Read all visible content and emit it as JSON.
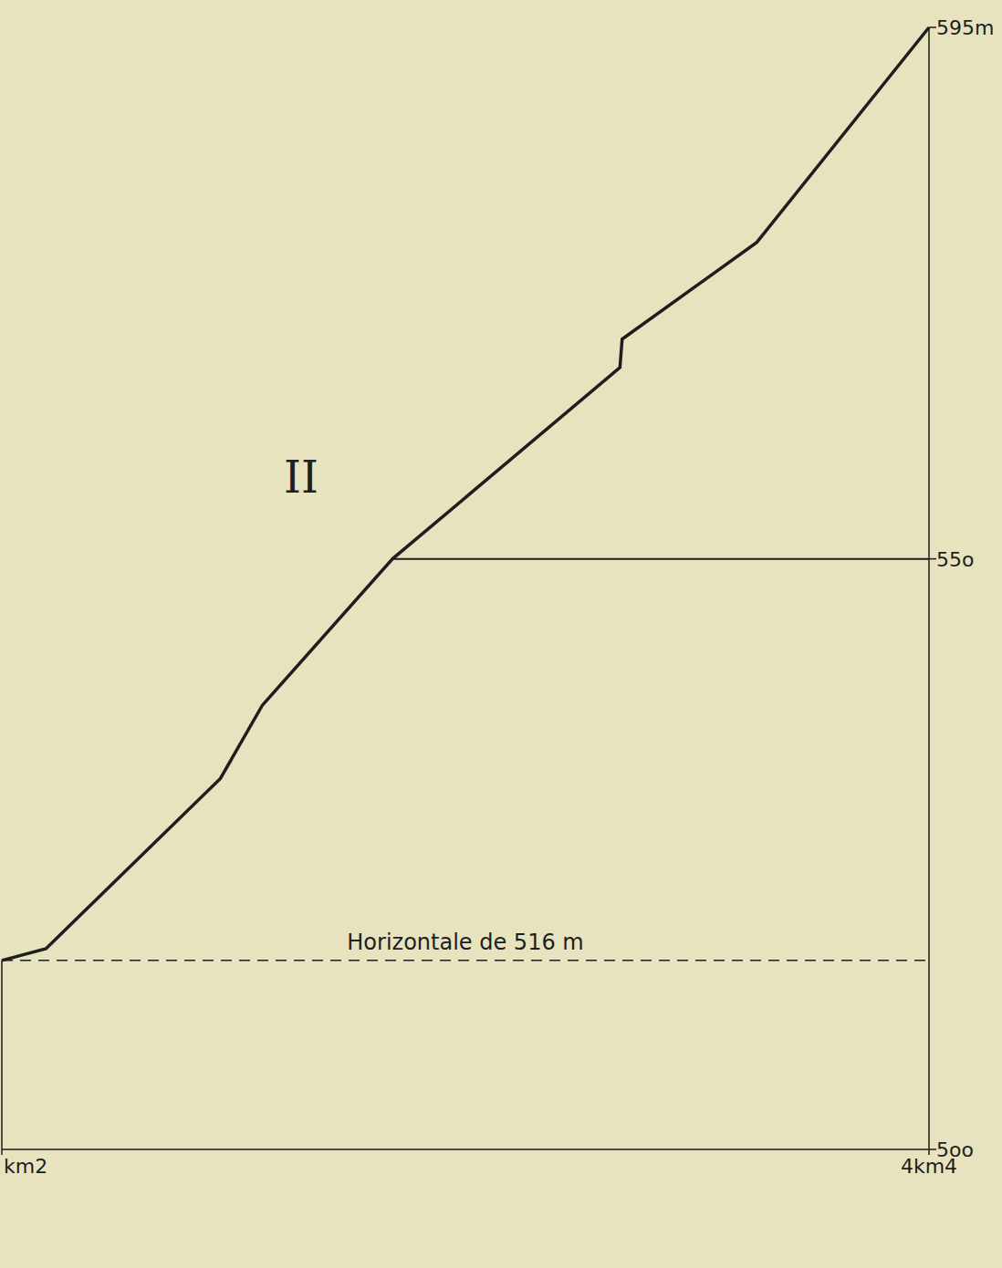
{
  "chart_data": {
    "type": "line",
    "label": "II",
    "x": [
      0.2,
      0.4,
      1.19,
      1.38,
      1.97,
      3.0,
      3.01,
      3.62,
      4.4
    ],
    "values": [
      516,
      517,
      531.4,
      537.6,
      550,
      566.2,
      568.6,
      576.8,
      595
    ],
    "color": "#1e1e1e",
    "xlim": [
      0.2,
      4.4
    ],
    "xticks": [
      {
        "value": 0.2,
        "label": "km2"
      },
      {
        "value": 4.4,
        "label": "4km4"
      }
    ],
    "ylim": [
      500,
      595
    ],
    "yticks": [
      {
        "value": 500,
        "label": "5oo"
      },
      {
        "value": 550,
        "label": "55o"
      },
      {
        "value": 595,
        "label": "595m"
      }
    ],
    "level_line": {
      "value": 550,
      "x_start": 1.97
    },
    "reference_line": {
      "value": 516,
      "label": "Horizontale de 516 m",
      "line_style": "dashed"
    },
    "grid": false
  }
}
